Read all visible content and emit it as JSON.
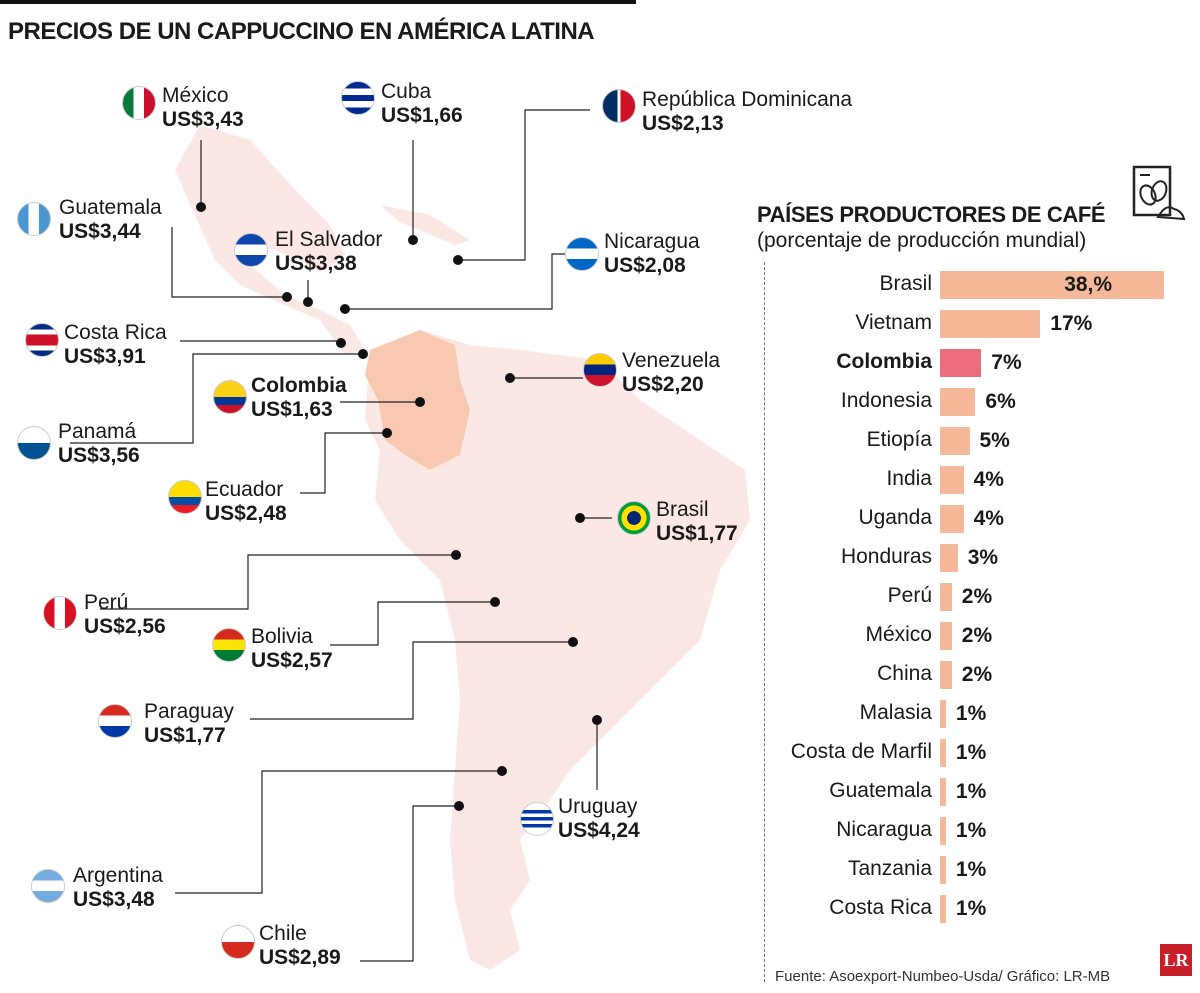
{
  "title": "PRECIOS DE UN CAPPUCCINO EN AMÉRICA LATINA",
  "countries": [
    {
      "name": "México",
      "price": "US$3,43",
      "flag": "mexico"
    },
    {
      "name": "Cuba",
      "price": "US$1,66",
      "flag": "cuba"
    },
    {
      "name": "República Dominicana",
      "price": "US$2,13",
      "flag": "dominican-republic"
    },
    {
      "name": "Guatemala",
      "price": "US$3,44",
      "flag": "guatemala"
    },
    {
      "name": "El Salvador",
      "price": "US$3,38",
      "flag": "el-salvador"
    },
    {
      "name": "Nicaragua",
      "price": "US$2,08",
      "flag": "nicaragua"
    },
    {
      "name": "Costa Rica",
      "price": "US$3,91",
      "flag": "costa-rica"
    },
    {
      "name": "Colombia",
      "price": "US$1,63",
      "flag": "colombia",
      "highlight": true
    },
    {
      "name": "Venezuela",
      "price": "US$2,20",
      "flag": "venezuela"
    },
    {
      "name": "Panamá",
      "price": "US$3,56",
      "flag": "panama"
    },
    {
      "name": "Ecuador",
      "price": "US$2,48",
      "flag": "ecuador"
    },
    {
      "name": "Brasil",
      "price": "US$1,77",
      "flag": "brazil"
    },
    {
      "name": "Perú",
      "price": "US$2,56",
      "flag": "peru"
    },
    {
      "name": "Bolivia",
      "price": "US$2,57",
      "flag": "bolivia"
    },
    {
      "name": "Paraguay",
      "price": "US$1,77",
      "flag": "paraguay"
    },
    {
      "name": "Uruguay",
      "price": "US$4,24",
      "flag": "uruguay"
    },
    {
      "name": "Argentina",
      "price": "US$3,48",
      "flag": "argentina"
    },
    {
      "name": "Chile",
      "price": "US$2,89",
      "flag": "chile"
    }
  ],
  "chart_data": {
    "type": "bar",
    "orientation": "horizontal",
    "title": "PAÍSES PRODUCTORES DE CAFÉ",
    "subtitle": "(porcentaje de producción mundial)",
    "categories": [
      "Brasil",
      "Vietnam",
      "Colombia",
      "Indonesia",
      "Etiopía",
      "India",
      "Uganda",
      "Honduras",
      "Perú",
      "México",
      "China",
      "Malasia",
      "Costa de Marfil",
      "Guatemala",
      "Nicaragua",
      "Tanzania",
      "Costa Rica"
    ],
    "values": [
      38,
      17,
      7,
      6,
      5,
      4,
      4,
      3,
      2,
      2,
      2,
      1,
      1,
      1,
      1,
      1,
      1
    ],
    "labels": [
      "38,%",
      "17%",
      "7%",
      "6%",
      "5%",
      "4%",
      "4%",
      "3%",
      "2%",
      "2%",
      "2%",
      "1%",
      "1%",
      "1%",
      "1%",
      "1%",
      "1%"
    ],
    "highlight": "Colombia",
    "colors": {
      "bar": "#f5b99a",
      "highlight": "#ec6e7c"
    }
  },
  "source": "Fuente:  Asoexport-Numbeo-Usda/ Gráfico: LR-MB",
  "logo": "LR",
  "colors": {
    "map": "#fbe8e4",
    "colombia": "#f8c9b0",
    "logo": "#c8202a"
  }
}
